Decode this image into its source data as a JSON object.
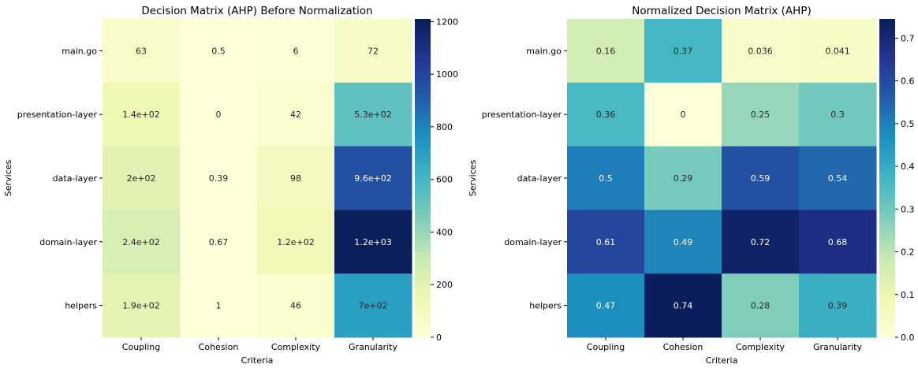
{
  "chart_data": [
    {
      "type": "heatmap",
      "title": "Decision Matrix (AHP) Before Normalization",
      "xlabel": "Criteria",
      "ylabel": "Services",
      "columns": [
        "Coupling",
        "Cohesion",
        "Complexity",
        "Granularity"
      ],
      "rows": [
        "main.go",
        "presentation-layer",
        "data-layer",
        "domain-layer",
        "helpers"
      ],
      "values": [
        [
          63,
          0.5,
          6,
          72
        ],
        [
          140,
          0,
          42,
          530
        ],
        [
          200,
          0.39,
          98,
          960
        ],
        [
          240,
          0.67,
          120,
          1200
        ],
        [
          190,
          1,
          46,
          700
        ]
      ],
      "annotations": [
        [
          "63",
          "0.5",
          "6",
          "72"
        ],
        [
          "1.4e+02",
          "0",
          "42",
          "5.3e+02"
        ],
        [
          "2e+02",
          "0.39",
          "98",
          "9.6e+02"
        ],
        [
          "2.4e+02",
          "0.67",
          "1.2e+02",
          "1.2e+03"
        ],
        [
          "1.9e+02",
          "1",
          "46",
          "7e+02"
        ]
      ],
      "colormap": "YlGnBu",
      "vmin": 0,
      "vmax": 1210,
      "colorbar_ticks": [
        0,
        200,
        400,
        600,
        800,
        1000,
        1200
      ],
      "colorbar_labels": [
        "0",
        "200",
        "400",
        "600",
        "800",
        "1000",
        "1200"
      ]
    },
    {
      "type": "heatmap",
      "title": "Normalized Decision Matrix (AHP)",
      "xlabel": "Criteria",
      "ylabel": "Services",
      "columns": [
        "Coupling",
        "Cohesion",
        "Complexity",
        "Granularity"
      ],
      "rows": [
        "main.go",
        "presentation-layer",
        "data-layer",
        "domain-layer",
        "helpers"
      ],
      "values": [
        [
          0.16,
          0.37,
          0.036,
          0.041
        ],
        [
          0.36,
          0,
          0.25,
          0.3
        ],
        [
          0.5,
          0.29,
          0.59,
          0.54
        ],
        [
          0.61,
          0.49,
          0.72,
          0.68
        ],
        [
          0.47,
          0.74,
          0.28,
          0.39
        ]
      ],
      "annotations": [
        [
          "0.16",
          "0.37",
          "0.036",
          "0.041"
        ],
        [
          "0.36",
          "0",
          "0.25",
          "0.3"
        ],
        [
          "0.5",
          "0.29",
          "0.59",
          "0.54"
        ],
        [
          "0.61",
          "0.49",
          "0.72",
          "0.68"
        ],
        [
          "0.47",
          "0.74",
          "0.28",
          "0.39"
        ]
      ],
      "colormap": "YlGnBu",
      "vmin": 0,
      "vmax": 0.745,
      "colorbar_ticks": [
        0,
        0.1,
        0.2,
        0.3,
        0.4,
        0.5,
        0.6,
        0.7
      ],
      "colorbar_labels": [
        "0.0",
        "0.1",
        "0.2",
        "0.3",
        "0.4",
        "0.5",
        "0.6",
        "0.7"
      ]
    }
  ]
}
